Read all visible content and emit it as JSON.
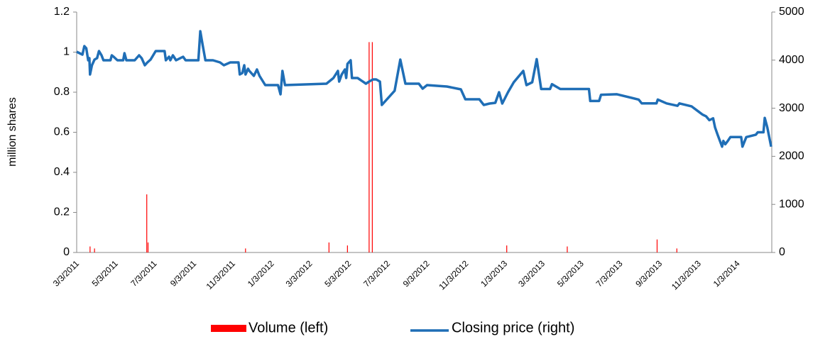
{
  "chart_data": {
    "type": "bar-line",
    "y_axis_label": "million shares",
    "xlim": [
      "3/1/2011",
      "2/24/2014"
    ],
    "xticks": [
      "3/3/2011",
      "5/3/2011",
      "7/3/2011",
      "9/3/2011",
      "11/3/2011",
      "1/3/2012",
      "3/3/2012",
      "5/3/2012",
      "7/3/2012",
      "9/3/2012",
      "11/3/2012",
      "1/3/2013",
      "3/3/2013",
      "5/3/2013",
      "7/3/2013",
      "9/3/2013",
      "11/3/2013",
      "1/3/2014"
    ],
    "ylim": [
      0,
      1.2
    ],
    "yticks": [
      0,
      0.2,
      0.4,
      0.6,
      0.8,
      1,
      1.2
    ],
    "y2lim": [
      0,
      5000
    ],
    "y2ticks": [
      0,
      1000,
      2000,
      3000,
      4000,
      5000
    ],
    "legend": "bottom",
    "series": [
      {
        "name": "Volume (left)",
        "type": "bar",
        "color": "#ff0000",
        "x": [
          "3/22/2011",
          "3/29/2011",
          "6/19/2011",
          "6/21/2011",
          "11/21/2011",
          "3/31/2012",
          "4/29/2012",
          "6/2/2012",
          "6/7/2012",
          "1/4/2013",
          "4/9/2013",
          "8/28/2013",
          "9/28/2013"
        ],
        "values": [
          0.03,
          0.02,
          0.29,
          0.05,
          0.02,
          0.05,
          0.035,
          1.05,
          1.05,
          0.035,
          0.03,
          0.065,
          0.02
        ]
      },
      {
        "name": "Closing price (right)",
        "type": "line",
        "axis": "y2",
        "color": "#1f6eb6",
        "x": [
          "3/1/2011",
          "3/10/2011",
          "3/13/2011",
          "3/16/2011",
          "3/19/2011",
          "3/21/2011",
          "3/22/2011",
          "3/25/2011",
          "3/29/2011",
          "4/2/2011",
          "4/5/2011",
          "4/9/2011",
          "4/12/2011",
          "4/23/2011",
          "4/25/2011",
          "4/28/2011",
          "5/4/2011",
          "5/13/2011",
          "5/15/2011",
          "5/18/2011",
          "5/31/2011",
          "6/7/2011",
          "6/11/2011",
          "6/16/2011",
          "6/20/2011",
          "6/25/2011",
          "7/3/2011",
          "7/17/2011",
          "7/19/2011",
          "7/24/2011",
          "7/26/2011",
          "7/30/2011",
          "8/4/2011",
          "8/15/2011",
          "8/19/2011",
          "9/8/2011",
          "9/11/2011",
          "9/15/2011",
          "9/19/2011",
          "10/1/2011",
          "10/12/2011",
          "10/18/2011",
          "10/28/2011",
          "11/10/2011",
          "11/12/2011",
          "11/16/2011",
          "11/19/2011",
          "11/21/2011",
          "11/25/2011",
          "11/27/2011",
          "12/4/2011",
          "12/9/2011",
          "12/13/2011",
          "12/22/2011",
          "1/11/2012",
          "1/15/2012",
          "1/18/2012",
          "1/22/2012",
          "3/27/2012",
          "4/7/2012",
          "4/14/2012",
          "4/16/2012",
          "4/20/2012",
          "4/25/2012",
          "4/27/2012",
          "4/29/2012",
          "5/4/2012",
          "5/6/2012",
          "5/15/2012",
          "5/28/2012",
          "6/2/2012",
          "6/8/2012",
          "6/13/2012",
          "6/19/2012",
          "6/22/2012",
          "7/12/2012",
          "7/21/2012",
          "7/29/2012",
          "8/19/2012",
          "8/25/2012",
          "9/1/2012",
          "10/2/2012",
          "10/24/2012",
          "10/31/2012",
          "11/22/2012",
          "11/29/2012",
          "12/8/2012",
          "12/17/2012",
          "12/23/2012",
          "12/28/2012",
          "1/6/2013",
          "1/15/2013",
          "1/30/2013",
          "2/4/2013",
          "2/13/2013",
          "2/20/2013",
          "2/27/2013",
          "3/13/2013",
          "3/16/2013",
          "3/29/2013",
          "4/13/2013",
          "5/13/2013",
          "5/15/2013",
          "5/29/2013",
          "6/1/2013",
          "6/26/2013",
          "7/30/2013",
          "8/4/2013",
          "8/27/2013",
          "8/29/2013",
          "9/12/2013",
          "9/29/2013",
          "10/2/2013",
          "10/21/2013",
          "11/1/2013",
          "11/7/2013",
          "11/13/2013",
          "11/18/2013",
          "11/24/2013",
          "11/27/2013",
          "12/1/2013",
          "12/8/2013",
          "12/10/2013",
          "12/13/2013",
          "12/17/2013",
          "12/21/2013",
          "1/7/2014",
          "1/9/2014",
          "1/15/2014",
          "1/30/2014",
          "2/2/2014",
          "2/11/2014",
          "2/13/2014",
          "2/17/2014",
          "2/23/2014"
        ],
        "values": [
          4174,
          4115,
          4292,
          4248,
          3997,
          4042,
          3702,
          3894,
          4012,
          4042,
          4189,
          4100,
          3997,
          3997,
          4100,
          4071,
          3997,
          3997,
          4145,
          3997,
          3997,
          4100,
          4042,
          3894,
          3953,
          4012,
          4189,
          4189,
          3997,
          4071,
          3997,
          4100,
          3997,
          4071,
          3997,
          3997,
          4602,
          4292,
          3997,
          3997,
          3953,
          3894,
          3953,
          3953,
          3702,
          3732,
          3894,
          3702,
          3820,
          3776,
          3673,
          3806,
          3673,
          3481,
          3481,
          3289,
          3776,
          3481,
          3510,
          3628,
          3776,
          3555,
          3702,
          3806,
          3628,
          3923,
          3997,
          3628,
          3628,
          3510,
          3555,
          3599,
          3599,
          3555,
          3068,
          3363,
          4012,
          3510,
          3510,
          3407,
          3481,
          3451,
          3392,
          3186,
          3186,
          3068,
          3097,
          3112,
          3333,
          3097,
          3333,
          3540,
          3776,
          3481,
          3540,
          4020,
          3400,
          3400,
          3500,
          3400,
          3400,
          3400,
          3150,
          3150,
          3280,
          3290,
          3180,
          3100,
          3100,
          3180,
          3100,
          3050,
          3100,
          3040,
          2930,
          2870,
          2830,
          2750,
          2790,
          2600,
          2450,
          2200,
          2320,
          2250,
          2320,
          2400,
          2400,
          2200,
          2400,
          2450,
          2500,
          2500,
          2800,
          2600,
          2200
        ]
      }
    ]
  }
}
